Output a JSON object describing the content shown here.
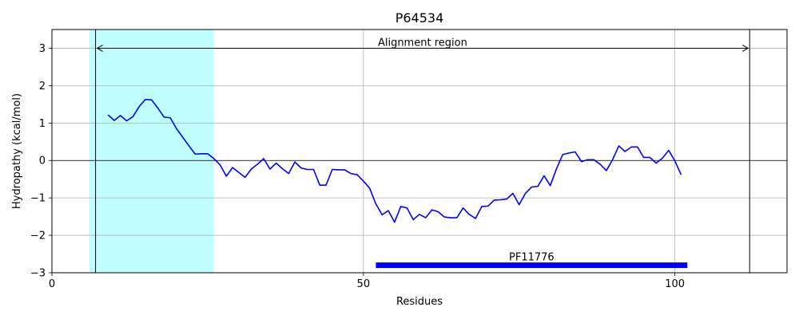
{
  "chart_data": {
    "type": "line",
    "title": "P64534",
    "xlabel": "Residues",
    "ylabel": "Hydropathy (kcal/mol)",
    "xlim": [
      0,
      118
    ],
    "ylim": [
      -3,
      3.5
    ],
    "xticks": [
      0,
      50,
      100
    ],
    "yticks": [
      -3,
      -2,
      -1,
      0,
      1,
      2,
      3
    ],
    "grid": true,
    "series": [
      {
        "color": "#0000ff",
        "x": [
          9,
          10,
          11,
          12,
          13,
          14,
          15,
          16,
          17,
          18,
          19,
          20,
          21,
          22,
          23,
          24,
          25,
          26,
          27,
          28,
          29,
          30,
          31,
          32,
          33,
          34,
          35,
          36,
          37,
          38,
          39,
          40,
          41,
          42,
          43,
          44,
          45,
          46,
          47,
          48,
          49,
          50,
          51,
          52,
          53,
          54,
          55,
          56,
          57,
          58,
          59,
          60,
          61,
          62,
          63,
          64,
          65,
          66,
          67,
          68,
          69,
          70,
          71,
          72,
          73,
          74,
          75,
          76,
          77,
          78,
          79,
          80,
          81,
          82,
          83,
          84,
          85,
          86,
          87,
          88,
          89,
          90,
          91,
          92,
          93,
          94,
          95,
          96,
          97,
          98,
          99,
          100,
          101
        ],
        "y": [
          1.22,
          1.07,
          1.2,
          1.06,
          1.17,
          1.44,
          1.63,
          1.62,
          1.4,
          1.16,
          1.14,
          0.85,
          0.62,
          0.39,
          0.17,
          0.18,
          0.18,
          0.05,
          -0.12,
          -0.42,
          -0.19,
          -0.32,
          -0.45,
          -0.23,
          -0.1,
          0.05,
          -0.23,
          -0.07,
          -0.22,
          -0.35,
          -0.04,
          -0.2,
          -0.24,
          -0.24,
          -0.66,
          -0.66,
          -0.24,
          -0.25,
          -0.25,
          -0.35,
          -0.38,
          -0.55,
          -0.74,
          -1.16,
          -1.45,
          -1.34,
          -1.65,
          -1.23,
          -1.27,
          -1.58,
          -1.44,
          -1.53,
          -1.32,
          -1.37,
          -1.51,
          -1.53,
          -1.53,
          -1.27,
          -1.44,
          -1.55,
          -1.23,
          -1.22,
          -1.06,
          -1.05,
          -1.03,
          -0.88,
          -1.18,
          -0.88,
          -0.71,
          -0.69,
          -0.41,
          -0.67,
          -0.22,
          0.16,
          0.2,
          0.23,
          -0.03,
          0.02,
          0.02,
          -0.1,
          -0.27,
          0.02,
          0.39,
          0.24,
          0.36,
          0.36,
          0.08,
          0.08,
          -0.07,
          0.06,
          0.27,
          -0.01,
          -0.38
        ]
      }
    ],
    "highlight_region": {
      "x_start": 6,
      "x_end": 26,
      "color": "#c0ffff"
    },
    "alignment_region": {
      "label": "Alignment region",
      "x_start": 7,
      "x_end": 112,
      "y": 3
    },
    "domains": [
      {
        "label": "PF11776",
        "x_start": 52,
        "x_end": 102,
        "y": -2.8,
        "color": "#0000ff"
      }
    ]
  }
}
